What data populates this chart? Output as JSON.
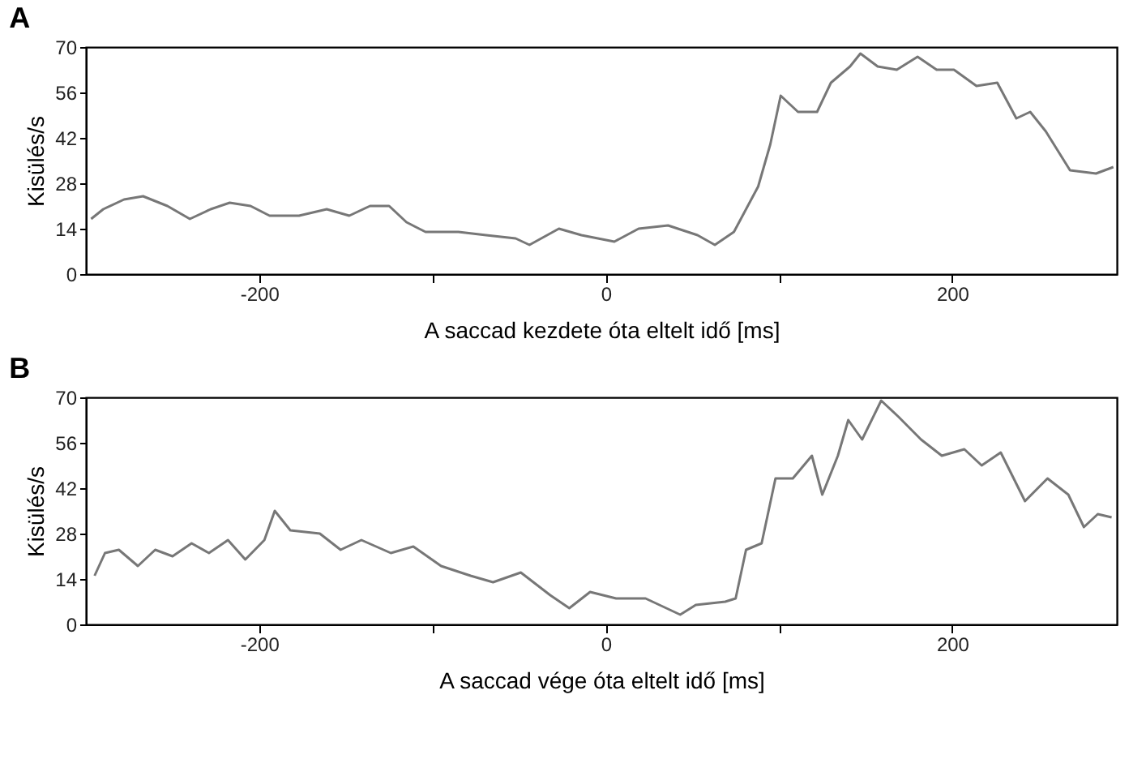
{
  "chart_data": [
    {
      "type": "line",
      "title": "A",
      "xlabel": "A saccad kezdete óta eltelt idő [ms]",
      "ylabel": "Kisülés/s",
      "xlim": [
        -300,
        295
      ],
      "xticks": [
        {
          "value": -200,
          "label": "-200"
        },
        {
          "value": -100,
          "label": null
        },
        0,
        {
          "value": 100,
          "label": null
        },
        200
      ],
      "ylim": [
        0,
        70
      ],
      "yticks": [
        0,
        14,
        28,
        42,
        56,
        70
      ],
      "grid": false,
      "series": [
        {
          "color": "#777777",
          "x": [
            -297,
            -290,
            -278,
            -267,
            -253,
            -240,
            -228,
            -217,
            -205,
            -194,
            -177,
            -161,
            -148,
            -136,
            -125,
            -115,
            -104,
            -85,
            -69,
            -52,
            -44,
            -27,
            -14,
            5,
            19,
            36,
            53,
            63,
            74,
            88,
            95,
            101,
            111,
            122,
            130,
            141,
            147,
            157,
            168,
            180,
            191,
            201,
            214,
            226,
            237,
            245,
            254,
            268,
            283,
            293
          ],
          "values": [
            17,
            20,
            23,
            24,
            21,
            17,
            20,
            22,
            21,
            18,
            18,
            20,
            18,
            21,
            21,
            16,
            13,
            13,
            12,
            11,
            9,
            14,
            12,
            10,
            14,
            15,
            12,
            9,
            13,
            27,
            40,
            55,
            50,
            50,
            59,
            64,
            68,
            64,
            63,
            67,
            63,
            63,
            58,
            59,
            48,
            50,
            44,
            32,
            31,
            33
          ]
        }
      ]
    },
    {
      "type": "line",
      "title": "B",
      "xlabel": "A saccad vége óta eltelt idő [ms]",
      "ylabel": "Kisülés/s",
      "xlim": [
        -300,
        295
      ],
      "xticks": [
        {
          "value": -200,
          "label": "-200"
        },
        {
          "value": -100,
          "label": null
        },
        0,
        {
          "value": 100,
          "label": null
        },
        200
      ],
      "ylim": [
        0,
        70
      ],
      "yticks": [
        0,
        14,
        28,
        42,
        56,
        70
      ],
      "grid": false,
      "series": [
        {
          "color": "#777777",
          "x": [
            -295,
            -289,
            -281,
            -270,
            -260,
            -250,
            -239,
            -229,
            -218,
            -208,
            -197,
            -191,
            -182,
            -165,
            -153,
            -141,
            -124,
            -111,
            -95,
            -78,
            -65,
            -49,
            -32,
            -21,
            -9,
            6,
            23,
            35,
            43,
            52,
            69,
            75,
            81,
            90,
            98,
            108,
            119,
            125,
            134,
            140,
            148,
            159,
            169,
            182,
            194,
            207,
            217,
            228,
            242,
            255,
            267,
            276,
            284,
            292
          ],
          "values": [
            15,
            22,
            23,
            18,
            23,
            21,
            25,
            22,
            26,
            20,
            26,
            35,
            29,
            28,
            23,
            26,
            22,
            24,
            18,
            15,
            13,
            16,
            9,
            5,
            10,
            8,
            8,
            5,
            3,
            6,
            7,
            8,
            23,
            25,
            45,
            45,
            52,
            40,
            52,
            63,
            57,
            69,
            64,
            57,
            52,
            54,
            49,
            53,
            38,
            45,
            40,
            30,
            34,
            33
          ]
        }
      ]
    }
  ]
}
